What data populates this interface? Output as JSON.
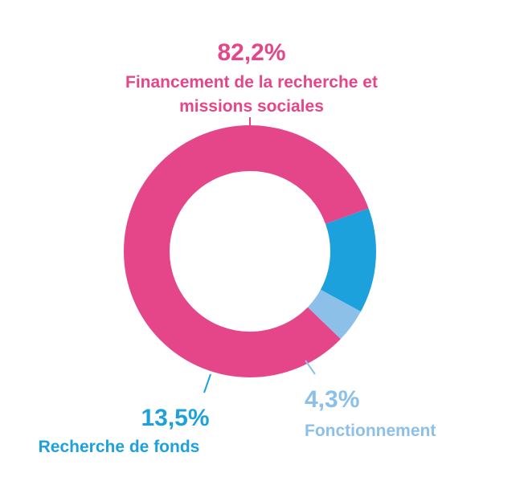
{
  "chart_data": {
    "type": "pie",
    "title": "",
    "legend": "none",
    "slices": [
      {
        "label_lines": [
          "Financement de la recherche et",
          "missions sociales"
        ],
        "value": 82.2,
        "value_label": "82,2%",
        "color": "#E5468A"
      },
      {
        "label_lines": [
          "Recherche de fonds"
        ],
        "value": 13.5,
        "value_label": "13,5%",
        "color": "#1DA1DC"
      },
      {
        "label_lines": [
          "Fonctionnement"
        ],
        "value": 4.3,
        "value_label": "4,3%",
        "color": "#8CC0E8"
      }
    ]
  }
}
